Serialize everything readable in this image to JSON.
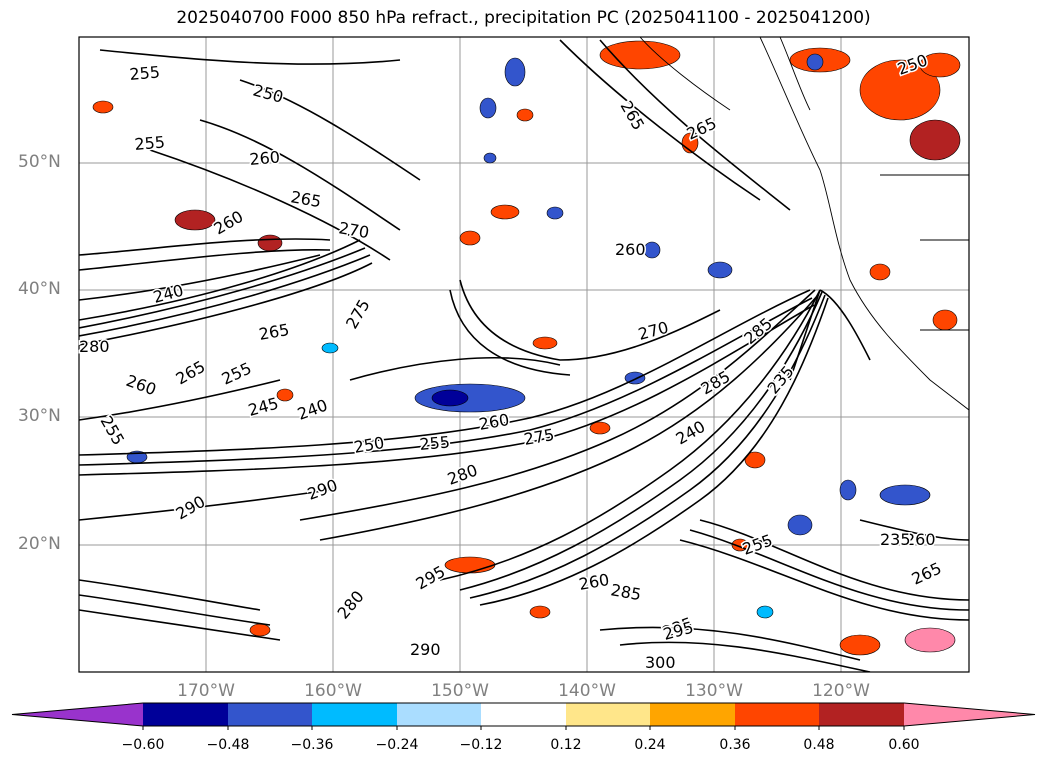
{
  "title": "2025040700 F000 850 hPa refract., precipitation PC (2025041100 - 2025041200)",
  "map": {
    "lat_labels": [
      "50°N",
      "40°N",
      "30°N",
      "20°N"
    ],
    "lon_labels": [
      "170°W",
      "160°W",
      "150°W",
      "140°W",
      "130°W",
      "120°W"
    ],
    "contour_color": "#000000",
    "contour_labels": [
      "255",
      "250",
      "255",
      "260",
      "265",
      "270",
      "260",
      "240",
      "265",
      "280",
      "275",
      "270",
      "265",
      "255",
      "260",
      "245",
      "240",
      "255",
      "250",
      "255",
      "260",
      "275",
      "285",
      "290",
      "280",
      "290",
      "285",
      "260",
      "265",
      "240",
      "235",
      "260",
      "265",
      "285",
      "235",
      "235",
      "295",
      "300",
      "290",
      "280",
      "295",
      "260",
      "265",
      "255",
      "250"
    ]
  },
  "colorbar": {
    "ticks": [
      "−0.60",
      "−0.48",
      "−0.36",
      "−0.24",
      "−0.12",
      "0.12",
      "0.24",
      "0.36",
      "0.48",
      "0.60"
    ],
    "colors": [
      "#9933cc",
      "#000099",
      "#3355cc",
      "#00bbff",
      "#aaddff",
      "#ffffff",
      "#ffe68a",
      "#ffa500",
      "#ff4500",
      "#b22222",
      "#ff88aa"
    ]
  }
}
